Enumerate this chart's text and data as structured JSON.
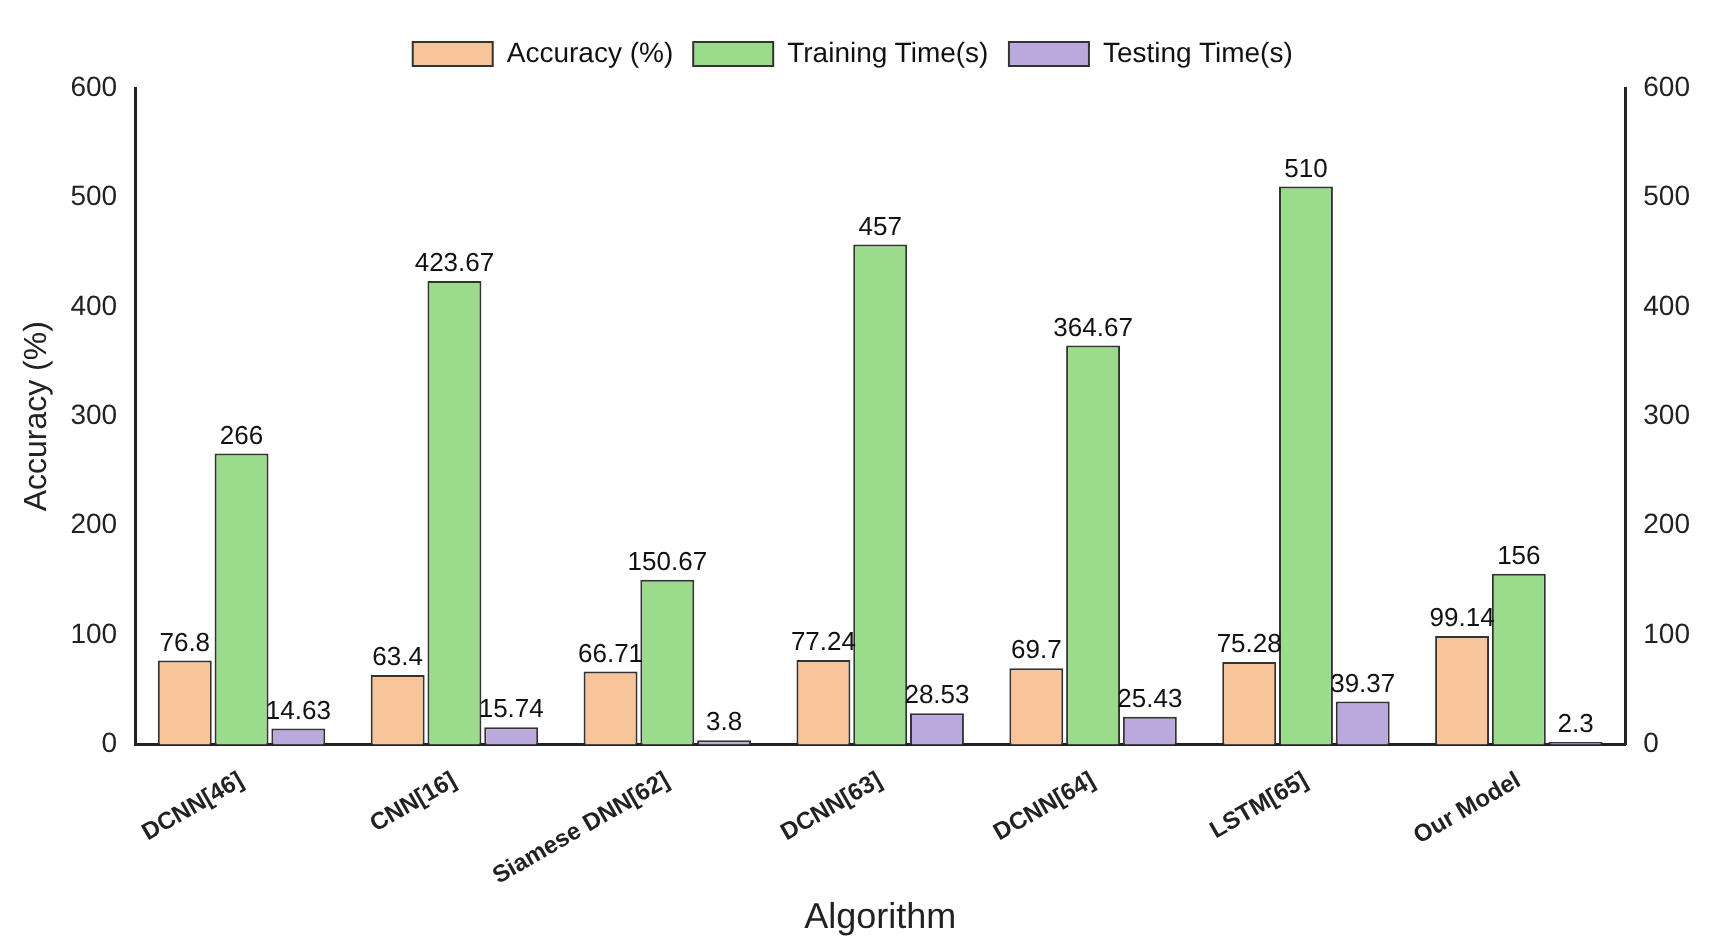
{
  "chart_data": {
    "type": "bar",
    "xlabel": "Algorithm",
    "ylabel": "Accuracy (%)",
    "categories": [
      "DCNN[46]",
      "CNN[16]",
      "Siamese DNN[62]",
      "DCNN[63]",
      "DCNN[64]",
      "LSTM[65]",
      "Our Model"
    ],
    "series": [
      {
        "name": "Accuracy (%)",
        "color": "#f8c499",
        "values": [
          76.8,
          63.4,
          66.71,
          77.24,
          69.7,
          75.28,
          99.14
        ]
      },
      {
        "name": "Training Time(s)",
        "color": "#9bdc8c",
        "values": [
          266,
          423.67,
          150.67,
          457,
          364.67,
          510,
          156
        ]
      },
      {
        "name": "Testing Time(s)",
        "color": "#bba9de",
        "values": [
          14.63,
          15.74,
          3.8,
          28.53,
          25.43,
          39.37,
          2.3
        ]
      }
    ],
    "ylim": [
      0,
      600
    ],
    "yticks": [
      0,
      100,
      200,
      300,
      400,
      500,
      600
    ],
    "y2lim": [
      0,
      600
    ],
    "y2ticks": [
      0,
      100,
      200,
      300,
      400,
      500,
      600
    ],
    "data_labels": true,
    "legend": "top",
    "grid": false
  }
}
